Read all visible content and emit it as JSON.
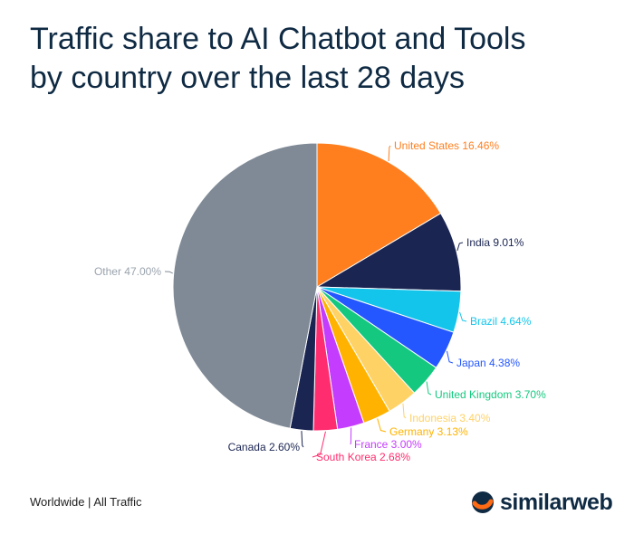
{
  "title_lines": [
    "Traffic share to AI Chatbot and Tools",
    "by country over the last 28 days"
  ],
  "footer": "Worldwide | All Traffic",
  "brand": {
    "name": "similarweb",
    "icon": "similarweb-logo-icon",
    "accent": "#ff6a13",
    "text_color": "#0f2a43"
  },
  "chart_data": {
    "type": "pie",
    "title": "Traffic share to AI Chatbot and Tools by country over the last 28 days",
    "unit": "%",
    "slices": [
      {
        "label": "United States",
        "value": 16.46,
        "display": "United States 16.46%",
        "color": "#ff7f1f"
      },
      {
        "label": "India",
        "value": 9.01,
        "display": "India 9.01%",
        "color": "#1b2552"
      },
      {
        "label": "Brazil",
        "value": 4.64,
        "display": "Brazil 4.64%",
        "color": "#14c5eb"
      },
      {
        "label": "Japan",
        "value": 4.38,
        "display": "Japan 4.38%",
        "color": "#2457ff"
      },
      {
        "label": "United Kingdom",
        "value": 3.7,
        "display": "United Kingdom 3.70%",
        "color": "#14c97f"
      },
      {
        "label": "Indonesia",
        "value": 3.4,
        "display": "Indonesia 3.40%",
        "color": "#ffd266"
      },
      {
        "label": "Germany",
        "value": 3.13,
        "display": "Germany 3.13%",
        "color": "#ffb300"
      },
      {
        "label": "France",
        "value": 3.0,
        "display": "France 3.00%",
        "color": "#c43dff"
      },
      {
        "label": "South Korea",
        "value": 2.68,
        "display": "South Korea 2.68%",
        "color": "#ff2d6f"
      },
      {
        "label": "Canada",
        "value": 2.6,
        "display": "Canada 2.60%",
        "color": "#1b2552"
      },
      {
        "label": "Other",
        "value": 47.0,
        "display": "Other 47.00%",
        "color": "#7f8a96",
        "label_color": "#9aa3ad"
      }
    ],
    "legend": "none"
  }
}
